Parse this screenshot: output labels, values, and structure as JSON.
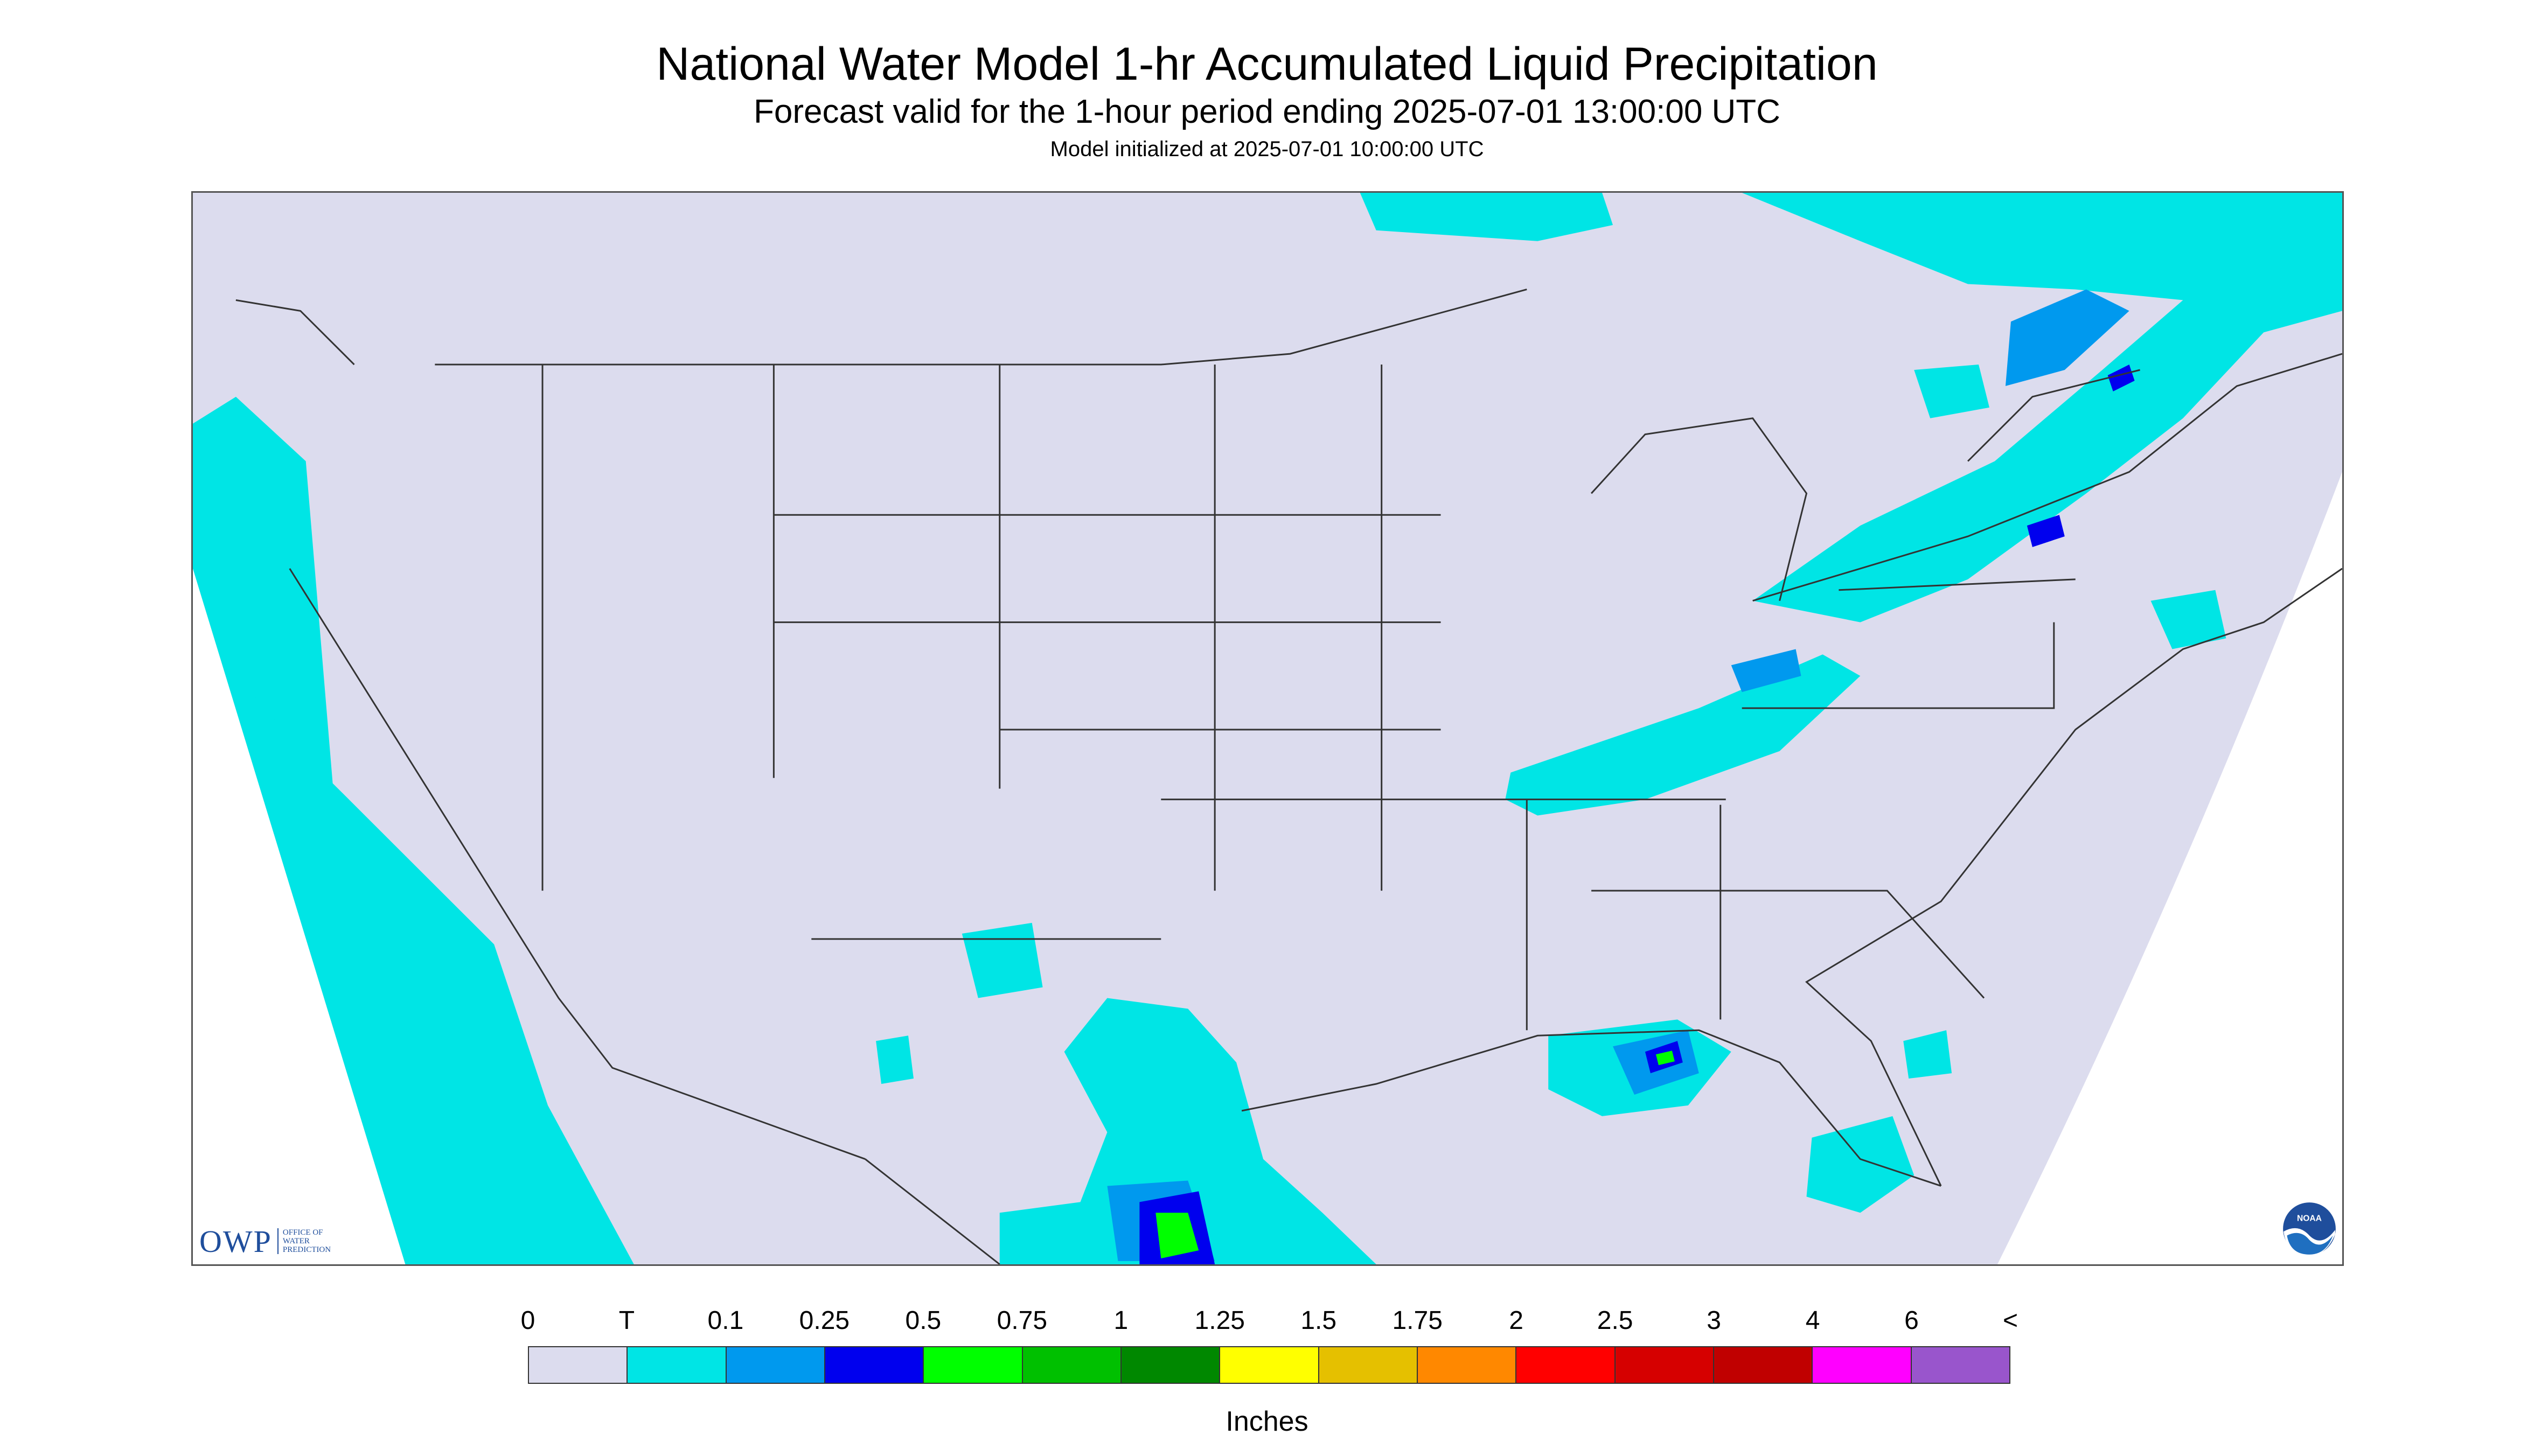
{
  "header": {
    "title": "National Water Model 1-hr Accumulated Liquid Precipitation",
    "subtitle": "Forecast valid for the 1-hour period ending 2025-07-01 13:00:00 UTC",
    "init": "Model initialized at 2025-07-01 10:00:00 UTC"
  },
  "map": {
    "background": "#dcdcee",
    "boundary_color": "#333333",
    "precip_colors": {
      "trace": "#00e5e5",
      "light": "#0099ee",
      "moderate": "#0000ee",
      "heavy": "#00ff00",
      "very_heavy": "#00c000"
    }
  },
  "logos": {
    "owp_text": "OWP",
    "owp_subtitle": "OFFICE OF WATER PREDICTION",
    "noaa_text": "NOAA"
  },
  "legend": {
    "labels": [
      "0",
      "T",
      "0.1",
      "0.25",
      "0.5",
      "0.75",
      "1",
      "1.25",
      "1.5",
      "1.75",
      "2",
      "2.5",
      "3",
      "4",
      "6",
      "<"
    ],
    "colors": [
      "#dcdcee",
      "#00e5e5",
      "#0099ee",
      "#0000ee",
      "#00ff00",
      "#00c000",
      "#008800",
      "#ffff00",
      "#e5c000",
      "#ff8800",
      "#ff0000",
      "#d60000",
      "#c00000",
      "#ff00ff",
      "#9955cc"
    ],
    "units": "Inches"
  }
}
